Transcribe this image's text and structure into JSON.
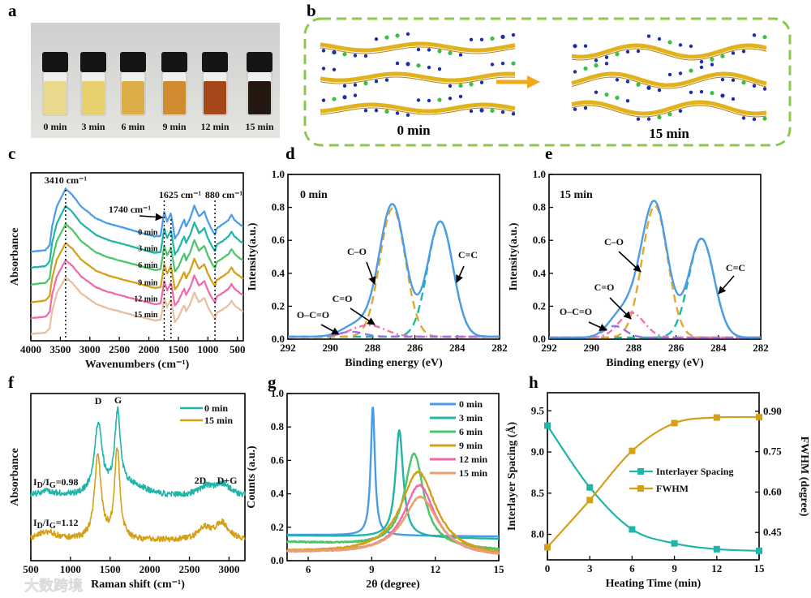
{
  "panel_labels": [
    "a",
    "b",
    "c",
    "d",
    "e",
    "f",
    "g",
    "h"
  ],
  "photo": {
    "vials": [
      {
        "label": "0 min",
        "color": "#e9d98c"
      },
      {
        "label": "3 min",
        "color": "#e6cf6c"
      },
      {
        "label": "6 min",
        "color": "#ddae48"
      },
      {
        "label": "9 min",
        "color": "#d08a30"
      },
      {
        "label": "12 min",
        "color": "#a4481a"
      },
      {
        "label": "15 min",
        "color": "#231710"
      }
    ]
  },
  "diagram": {
    "left_label": "0 min",
    "right_label": "15 min",
    "border_color": "#8cc850",
    "arrow_color": "#f2a81c"
  },
  "watermark": "大数跨境",
  "chart_data": [
    {
      "panel": "c",
      "type": "line",
      "xlabel": "Wavenumbers (cm⁻¹)",
      "ylabel": "Absorbance",
      "xlim": [
        4000,
        400
      ],
      "ylim": [
        0,
        10
      ],
      "xticks": [
        "4000",
        "3500",
        "3000",
        "2500",
        "2000",
        "1500",
        "1000",
        "500"
      ],
      "annotations": [
        {
          "text": "3410 cm⁻¹",
          "x": 3410
        },
        {
          "text": "1740 cm⁻¹",
          "x": 1740
        },
        {
          "text": "1625 cm⁻¹",
          "x": 1625
        },
        {
          "text": "880 cm⁻¹",
          "x": 880
        }
      ],
      "profile": [
        [
          4000,
          0
        ],
        [
          3750,
          0.1
        ],
        [
          3680,
          0.4
        ],
        [
          3640,
          1.5
        ],
        [
          3560,
          2.7
        ],
        [
          3410,
          3.75
        ],
        [
          3300,
          3.4
        ],
        [
          3150,
          2.7
        ],
        [
          2900,
          2.0
        ],
        [
          2700,
          1.7
        ],
        [
          2500,
          1.5
        ],
        [
          2200,
          1.2
        ],
        [
          1900,
          0.9
        ],
        [
          1800,
          0.95
        ],
        [
          1740,
          2.4
        ],
        [
          1690,
          1.8
        ],
        [
          1625,
          2.3
        ],
        [
          1560,
          0.8
        ],
        [
          1500,
          1.1
        ],
        [
          1430,
          1.7
        ],
        [
          1400,
          1.9
        ],
        [
          1370,
          1.5
        ],
        [
          1300,
          2.0
        ],
        [
          1230,
          2.75
        ],
        [
          1150,
          2.1
        ],
        [
          1090,
          2.3
        ],
        [
          1060,
          2.4
        ],
        [
          1000,
          1.8
        ],
        [
          930,
          1.3
        ],
        [
          880,
          1.0
        ],
        [
          850,
          1.4
        ],
        [
          760,
          1.6
        ],
        [
          650,
          1.9
        ],
        [
          600,
          2.2
        ],
        [
          550,
          1.9
        ],
        [
          450,
          1.6
        ],
        [
          400,
          1.5
        ]
      ],
      "series": [
        {
          "name": "0 min",
          "offset": 5.3,
          "color": "#4a9be8"
        },
        {
          "name": "3 min",
          "offset": 4.35,
          "color": "#1fb5a8"
        },
        {
          "name": "6 min",
          "offset": 3.35,
          "color": "#4cc46a"
        },
        {
          "name": "9 min",
          "offset": 2.3,
          "color": "#d4a017"
        },
        {
          "name": "12 min",
          "offset": 1.35,
          "color": "#f06aa8"
        },
        {
          "name": "15 min",
          "offset": 0.4,
          "color": "#e8bfa0"
        }
      ]
    },
    {
      "panel": "d",
      "type": "line",
      "title": "0 min",
      "xlabel": "Binding energy (eV)",
      "ylabel": "Intensity(a.u.)",
      "xlim": [
        292,
        282
      ],
      "ylim": [
        0,
        1
      ],
      "xticks": [
        "292",
        "290",
        "288",
        "286",
        "284",
        "282"
      ],
      "yticks": [
        "0.0",
        "0.2",
        "0.4",
        "0.6",
        "0.8",
        "1.0"
      ],
      "baseline": 0.015,
      "envelope_color": "#4a9be8",
      "components": [
        {
          "name": "C=C",
          "center": 284.8,
          "height": 0.7,
          "sigma": 0.6,
          "color": "#1fb5a8"
        },
        {
          "name": "C–O",
          "center": 287.05,
          "height": 0.78,
          "sigma": 0.6,
          "color": "#e0a830"
        },
        {
          "name": "C=O",
          "center": 288.2,
          "height": 0.07,
          "sigma": 0.8,
          "color": "#f070b0"
        },
        {
          "name": "O–C=O",
          "center": 289.0,
          "height": 0.03,
          "sigma": 0.6,
          "color": "#a070e0"
        }
      ]
    },
    {
      "panel": "e",
      "type": "line",
      "title": "15 min",
      "xlabel": "Binding energy (eV)",
      "ylabel": "Intensity(a.u.)",
      "xlim": [
        292,
        282
      ],
      "ylim": [
        0,
        1
      ],
      "xticks": [
        "292",
        "290",
        "288",
        "286",
        "284",
        "282"
      ],
      "yticks": [
        "0.0",
        "0.2",
        "0.4",
        "0.6",
        "0.8",
        "1.0"
      ],
      "baseline": 0.01,
      "envelope_color": "#4a9be8",
      "components": [
        {
          "name": "C=C",
          "center": 284.8,
          "height": 0.6,
          "sigma": 0.6,
          "color": "#1fb5a8"
        },
        {
          "name": "C–O",
          "center": 287.0,
          "height": 0.8,
          "sigma": 0.6,
          "color": "#e0a830"
        },
        {
          "name": "C=O",
          "center": 288.1,
          "height": 0.15,
          "sigma": 0.6,
          "color": "#f070b0"
        },
        {
          "name": "O–C=O",
          "center": 288.9,
          "height": 0.07,
          "sigma": 0.5,
          "color": "#a070e0"
        }
      ]
    },
    {
      "panel": "f",
      "type": "line",
      "xlabel": "Raman shift (cm⁻¹)",
      "ylabel": "Absorbance",
      "xlim": [
        500,
        3200
      ],
      "ylim": [
        0,
        10
      ],
      "xticks": [
        "500",
        "1000",
        "1500",
        "2000",
        "2500",
        "3000"
      ],
      "peak_labels": [
        {
          "text": "D",
          "x": 1350
        },
        {
          "text": "G",
          "x": 1595
        },
        {
          "text": "2D",
          "x": 2700
        },
        {
          "text": "D+G",
          "x": 2940
        }
      ],
      "series": [
        {
          "name": "0 min",
          "color": "#1fb5a8",
          "base": 3.8,
          "ratio": {
            "i": "I",
            "d": "D",
            "sep": "/I",
            "g": "G",
            "value": "=0.98"
          },
          "peaks": [
            [
              1350,
              4.2,
              60
            ],
            [
              1595,
              4.7,
              45
            ],
            [
              1800,
              0.6,
              200
            ],
            [
              700,
              0.3,
              150
            ],
            [
              2700,
              0.5,
              120
            ],
            [
              2920,
              0.7,
              120
            ]
          ]
        },
        {
          "name": "15 min",
          "color": "#d4a017",
          "base": 1.2,
          "ratio": {
            "i": "I",
            "d": "D",
            "sep": "/I",
            "g": "G",
            "value": "=1.12"
          },
          "peaks": [
            [
              1345,
              5.0,
              50
            ],
            [
              1590,
              5.4,
              40
            ],
            [
              700,
              0.5,
              150
            ],
            [
              2690,
              0.7,
              100
            ],
            [
              2910,
              1.0,
              100
            ]
          ]
        }
      ]
    },
    {
      "panel": "g",
      "type": "line",
      "xlabel": "2θ (degree)",
      "ylabel": "Counts (a.u.)",
      "xlim": [
        5,
        15
      ],
      "ylim": [
        0,
        1
      ],
      "xticks": [
        "6",
        "9",
        "12",
        "15"
      ],
      "yticks": [
        "0.0",
        "0.2",
        "0.4",
        "0.6",
        "0.8",
        "1.0"
      ],
      "legend": "top-right",
      "series": [
        {
          "name": "0 min",
          "color": "#4a9be8",
          "center": 9.05,
          "height": 0.77,
          "hw": 0.12,
          "base": [
            0.155,
            0.145
          ]
        },
        {
          "name": "3 min",
          "color": "#1fb5a8",
          "center": 10.3,
          "height": 0.64,
          "hw": 0.22,
          "base": [
            0.15,
            0.13
          ]
        },
        {
          "name": "6 min",
          "color": "#4cc46a",
          "center": 11.0,
          "height": 0.56,
          "hw": 0.55,
          "base": [
            0.11,
            0.06
          ]
        },
        {
          "name": "9 min",
          "color": "#d4a017",
          "center": 11.2,
          "height": 0.5,
          "hw": 1.0,
          "base": [
            0.05,
            0.02
          ]
        },
        {
          "name": "12 min",
          "color": "#f06aa8",
          "center": 11.25,
          "height": 0.42,
          "hw": 0.9,
          "base": [
            0.05,
            0.02
          ]
        },
        {
          "name": "15 min",
          "color": "#e8a070",
          "center": 11.3,
          "height": 0.35,
          "hw": 1.0,
          "base": [
            0.05,
            0.02
          ]
        }
      ]
    },
    {
      "panel": "h",
      "type": "line",
      "xlabel": "Heating Time (min)",
      "ylabel": "Interlayer Spacing (Å)",
      "y2label": "FWHM (degree)",
      "xlim": [
        0,
        15
      ],
      "ylim": [
        7.69,
        9.72
      ],
      "y2lim": [
        0.348,
        0.969
      ],
      "xticks": [
        "0",
        "3",
        "6",
        "9",
        "12",
        "15"
      ],
      "yticks": [
        "8.0",
        "8.5",
        "9.0",
        "9.5"
      ],
      "y2ticks": [
        "0.45",
        "0.60",
        "0.75",
        "0.90"
      ],
      "x": [
        0,
        3,
        6,
        9,
        12,
        15
      ],
      "series": [
        {
          "name": "Interlayer Spacing",
          "axis": "left",
          "color": "#1fb5a8",
          "values": [
            9.32,
            8.57,
            8.06,
            7.89,
            7.82,
            7.8
          ]
        },
        {
          "name": "FWHM",
          "axis": "right",
          "color": "#d4a017",
          "values": [
            0.395,
            0.57,
            0.753,
            0.856,
            0.877,
            0.878
          ]
        }
      ]
    }
  ]
}
